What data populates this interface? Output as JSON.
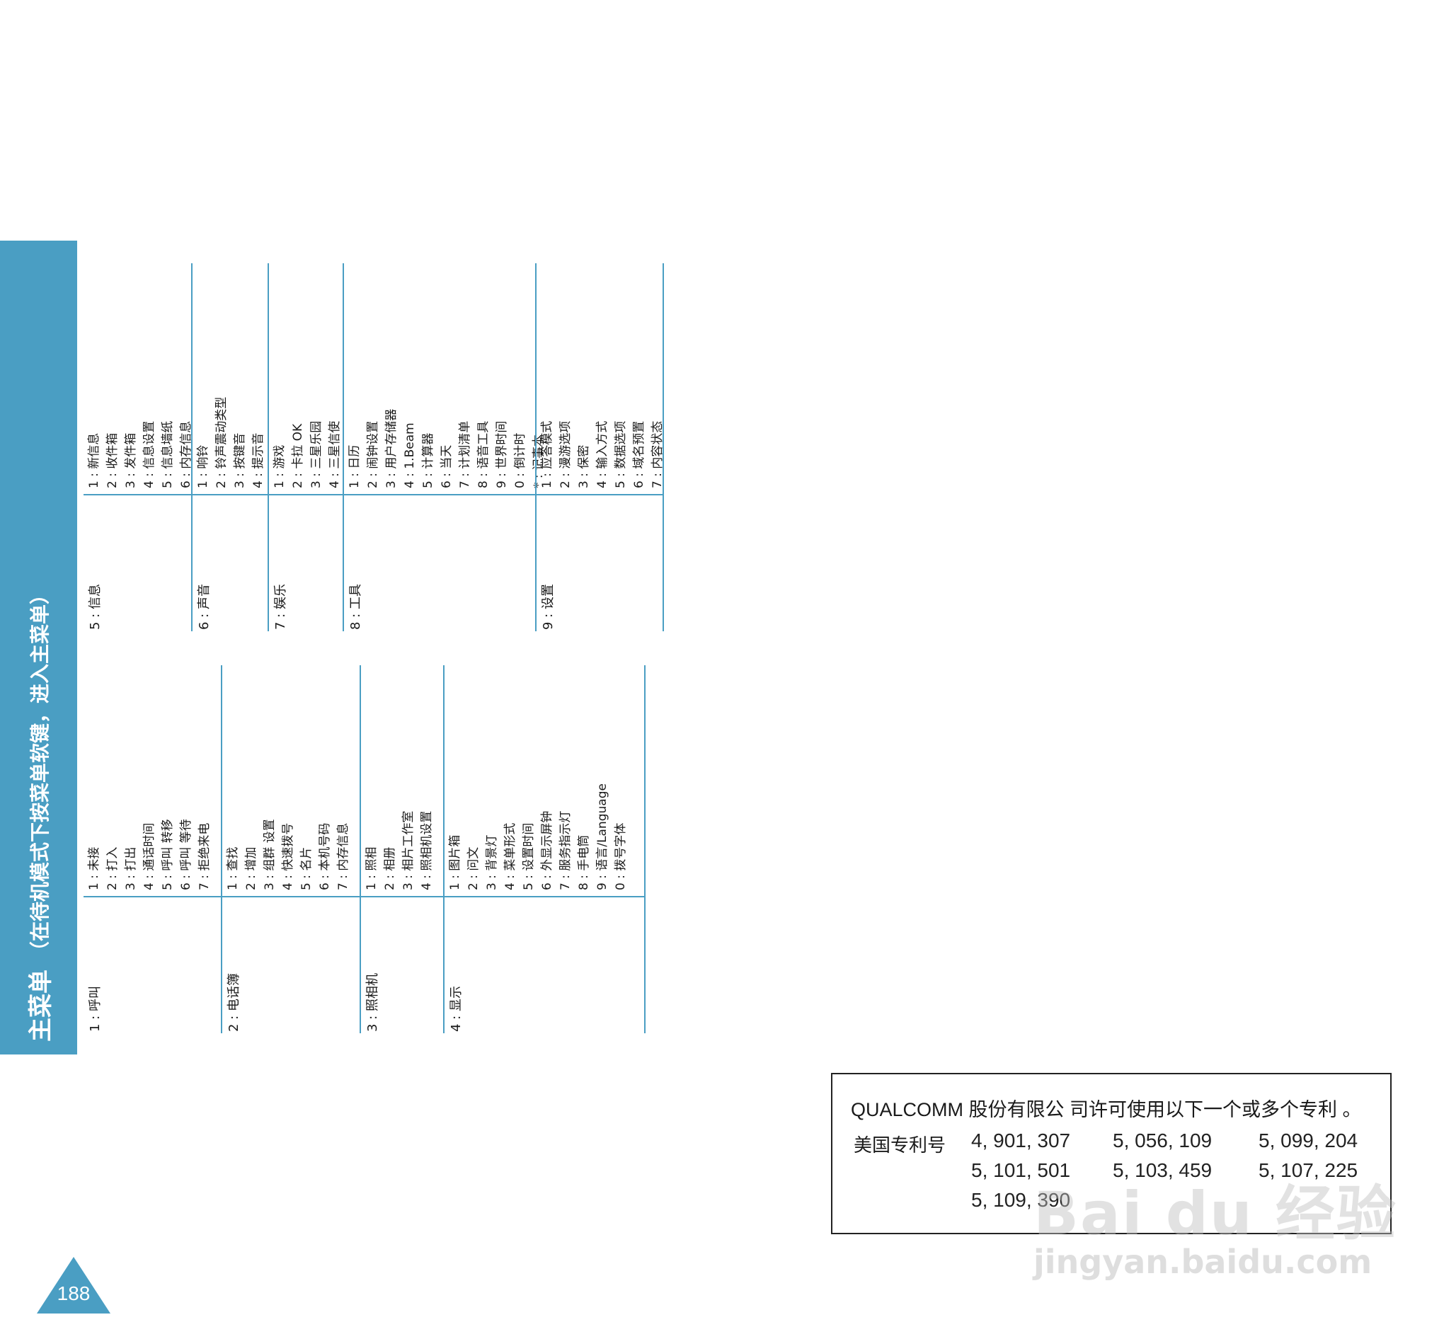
{
  "header": {
    "title": "主菜单",
    "subtitle": "（在待机模式下按菜单软键，进入主菜单）"
  },
  "left_block": [
    {
      "category": "1 : 呼叫",
      "items": [
        "1 : 未接",
        "2 : 打入",
        "3 : 打出",
        "4 : 通话时间",
        "5 : 呼叫 转移",
        "6 : 呼叫 等待",
        "7 : 拒绝来电"
      ]
    },
    {
      "category": "2 : 电话簿",
      "items": [
        "1 : 查找",
        "2 : 增加",
        "3 : 组群 设置",
        "4 : 快速拨号",
        "5 : 名片",
        "6 : 本机号码",
        "7 : 内存信息"
      ]
    },
    {
      "category": "3 : 照相机",
      "items": [
        "1 : 照相",
        "2 : 相册",
        "3 : 相片工作室",
        "4 : 照相机设置"
      ]
    },
    {
      "category": "4 : 显示",
      "items": [
        "1 : 图片箱",
        "2 : 问文",
        "3 : 背景灯",
        "4 : 菜单形式",
        "5 : 设置时间",
        "6 : 外显示屏钟",
        "7 : 服务指示灯",
        "8 : 手电筒",
        "9 : 语言/Language",
        "0 : 拨号字体"
      ]
    }
  ],
  "right_block": [
    {
      "category": "5 : 信息",
      "items": [
        "1 : 新信息",
        "2 : 收件箱",
        "3 : 发件箱",
        "4 : 信息设置",
        "5 : 信息墙纸",
        "6 : 内存信息"
      ]
    },
    {
      "category": "6 : 声音",
      "items": [
        "1 : 响铃",
        "2 : 铃声震动类型",
        "3 : 按键音",
        "4 : 提示音"
      ]
    },
    {
      "category": "7 : 娱乐",
      "items": [
        "1 : 游戏",
        "2 : 卡拉 OK",
        "3 : 三星乐园",
        "4 : 三星信使"
      ]
    },
    {
      "category": "8 : 工具",
      "items": [
        "1 : 日历",
        "2 : 闹钟设置",
        "3 : 用户存储器",
        "4 : 1.Beam",
        "5 : 计算器",
        "6 : 当天",
        "7 : 计划清单",
        "8 : 语音工具",
        "9 : 世界时间",
        "0 : 倒计时",
        "* : 记事本"
      ]
    },
    {
      "category": "9 : 设置",
      "items": [
        "1 : 应答模式",
        "2 : 漫游选项",
        "3 : 保密",
        "4 : 输入方式",
        "5 : 数据选项",
        "6 : 域名预置",
        "7 : 内容状态"
      ]
    }
  ],
  "patent": {
    "intro": "QUALCOMM 股份有限公 司许可使用以下一个或多个专利 。",
    "label": "美国专利号",
    "numbers": [
      "4, 901, 307",
      "5, 056, 109",
      "5, 099, 204",
      "5, 101, 501",
      "5, 103, 459",
      "5, 107, 225",
      "5, 109, 390"
    ]
  },
  "page_number": "188",
  "watermark": {
    "brand": "Bai du 经验",
    "url": "jingyan.baidu.com"
  },
  "colors": {
    "accent": "#4a9ec3",
    "text": "#1a1a1a",
    "border": "#222222"
  }
}
